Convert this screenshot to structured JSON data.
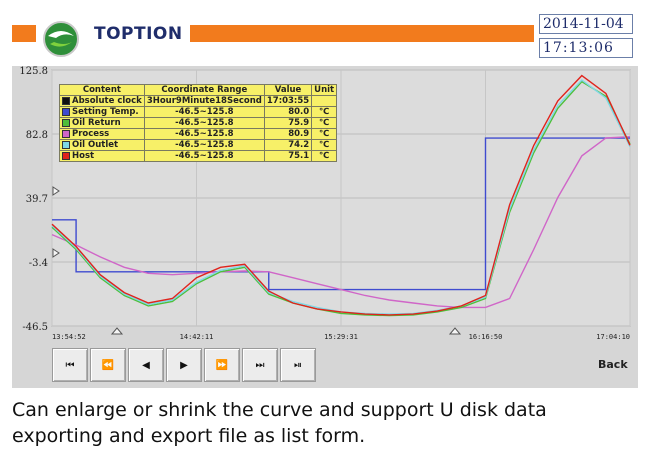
{
  "header": {
    "brand": "TOPTION",
    "date": "2014-11-04",
    "time": "17:13:06"
  },
  "chart": {
    "y_ticks": [
      "125.8",
      "82.8",
      "39.7",
      "-3.4",
      "-46.5"
    ],
    "x_ticks": [
      "13:54:52",
      "14:42:11",
      "15:29:31",
      "16:16:50",
      "17:04:10"
    ]
  },
  "legend": {
    "headers": [
      "Content",
      "Coordinate Range",
      "Value",
      "Unit"
    ],
    "rows": [
      {
        "name": "Absolute clock",
        "range": "3Hour9Minute18Second",
        "value": "17:03:55",
        "unit": "",
        "color": "#111111"
      },
      {
        "name": "Setting Temp.",
        "range": "-46.5~125.8",
        "value": "80.0",
        "unit": "℃",
        "color": "#3f4bcf"
      },
      {
        "name": "Oil Return",
        "range": "-46.5~125.8",
        "value": "75.9",
        "unit": "℃",
        "color": "#4fbf3a"
      },
      {
        "name": "Process",
        "range": "-46.5~125.8",
        "value": "80.9",
        "unit": "℃",
        "color": "#d066c8"
      },
      {
        "name": "Oil Outlet",
        "range": "-46.5~125.8",
        "value": "74.2",
        "unit": "℃",
        "color": "#7fd7e6"
      },
      {
        "name": "Host",
        "range": "-46.5~125.8",
        "value": "75.1",
        "unit": "℃",
        "color": "#e0231c"
      }
    ]
  },
  "controls": [
    "⏮",
    "⏪",
    "◀",
    "▶",
    "⏩",
    "⏭",
    "⏯"
  ],
  "back_label": "Back",
  "caption": "Can enlarge or shrink the curve and support U disk data exporting and export file as list form.",
  "chart_data": {
    "type": "line",
    "ylim": [
      -46.5,
      125.8
    ],
    "x": [
      "13:54:52",
      "14:02",
      "14:10",
      "14:18",
      "14:26",
      "14:34",
      "14:42:11",
      "14:50",
      "14:58",
      "15:06",
      "15:14",
      "15:22",
      "15:29:31",
      "15:37",
      "15:45",
      "15:53",
      "16:01",
      "16:09",
      "16:16:50",
      "16:24",
      "16:32",
      "16:40",
      "16:48",
      "16:56",
      "17:04:10"
    ],
    "series": [
      {
        "name": "Setting Temp.",
        "color": "#3f4bcf",
        "values": [
          25.0,
          -10.0,
          -10.0,
          -10.0,
          -10.0,
          -10.0,
          -10.0,
          -10.0,
          -10.0,
          -22.0,
          -22.0,
          -22.0,
          -22.0,
          -22.0,
          -22.0,
          -22.0,
          -22.0,
          -22.0,
          80.0,
          80.0,
          80.0,
          80.0,
          80.0,
          80.0,
          80.0
        ]
      },
      {
        "name": "Process",
        "color": "#d066c8",
        "values": [
          15.0,
          8.0,
          0.0,
          -7.0,
          -11.0,
          -12.0,
          -11.0,
          -10.0,
          -9.5,
          -10.0,
          -14.0,
          -18.0,
          -22.0,
          -26.0,
          -29.0,
          -31.0,
          -33.0,
          -34.0,
          -34.0,
          -28.0,
          5.0,
          40.0,
          68.0,
          80.0,
          80.9
        ]
      },
      {
        "name": "Oil Return",
        "color": "#4fbf3a",
        "values": [
          20.0,
          5.0,
          -14.0,
          -26.0,
          -33.0,
          -30.0,
          -18.0,
          -10.0,
          -7.0,
          -25.0,
          -31.0,
          -35.0,
          -38.0,
          -39.0,
          -39.5,
          -39.0,
          -37.0,
          -34.0,
          -28.0,
          30.0,
          70.0,
          100.0,
          118.0,
          108.0,
          75.9
        ]
      },
      {
        "name": "Oil Outlet",
        "color": "#7fd7e6",
        "values": [
          21.0,
          6.0,
          -13.0,
          -25.0,
          -32.0,
          -29.0,
          -17.0,
          -9.0,
          -6.0,
          -24.0,
          -30.0,
          -34.0,
          -37.0,
          -38.0,
          -38.5,
          -38.0,
          -36.0,
          -33.0,
          -27.0,
          32.0,
          72.0,
          102.0,
          119.0,
          107.0,
          74.2
        ]
      },
      {
        "name": "Host",
        "color": "#e0231c",
        "values": [
          22.0,
          7.0,
          -12.0,
          -24.0,
          -31.0,
          -28.0,
          -14.0,
          -7.0,
          -5.0,
          -23.0,
          -31.0,
          -35.0,
          -37.0,
          -38.5,
          -39.0,
          -38.5,
          -36.5,
          -33.0,
          -26.0,
          35.0,
          75.0,
          105.0,
          122.0,
          110.0,
          75.1
        ]
      }
    ]
  }
}
